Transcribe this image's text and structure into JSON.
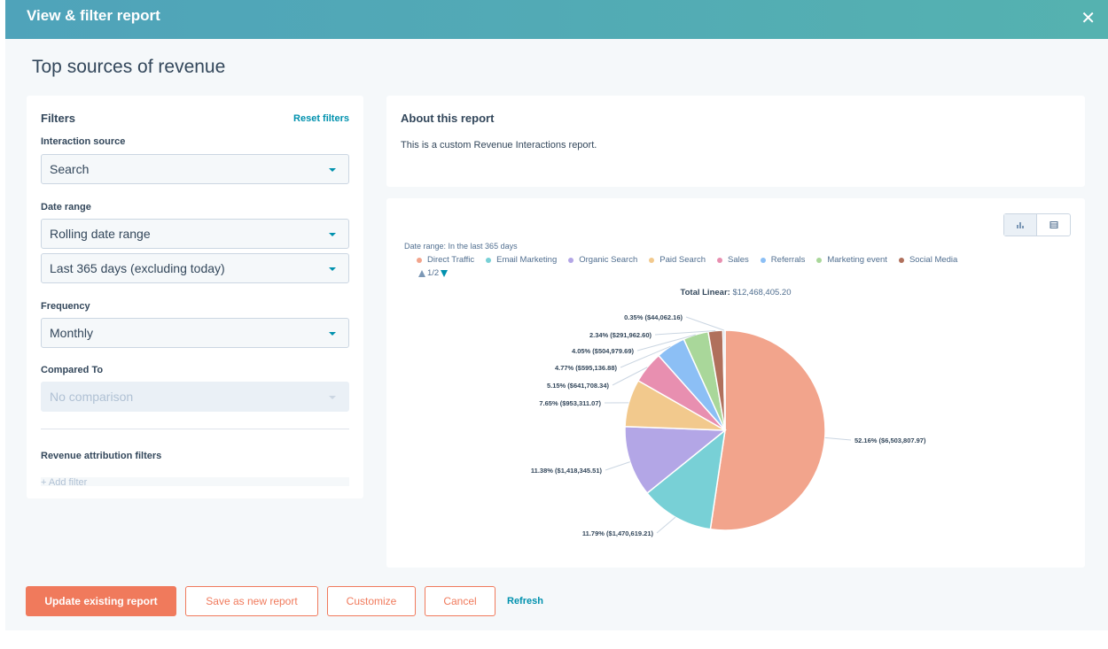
{
  "header": {
    "title": "View & filter report",
    "close": "✕"
  },
  "page_title": "Top sources of revenue",
  "filters": {
    "title": "Filters",
    "reset": "Reset filters",
    "interaction_source": {
      "label": "Interaction source",
      "value": "Search"
    },
    "date_range": {
      "label": "Date range",
      "type_value": "Rolling date range",
      "range_value": "Last 365 days (excluding today)"
    },
    "frequency": {
      "label": "Frequency",
      "value": "Monthly"
    },
    "compared_to": {
      "label": "Compared To",
      "value": "No comparison"
    },
    "attribution": {
      "label": "Revenue attribution filters",
      "add": "+ Add filter"
    }
  },
  "about": {
    "title": "About this report",
    "text": "This is a custom Revenue Interactions report."
  },
  "chart": {
    "date_range_text": "Date range: In the last 365 days",
    "pager": "1/2",
    "total_label": "Total Linear:",
    "total_value": "$12,468,405.20"
  },
  "chart_data": {
    "type": "pie",
    "legend_position": "top",
    "series": [
      {
        "name": "Direct Traffic",
        "percent": 52.16,
        "value": 6503807.97,
        "label": "52.16% ($6,503,807.97)",
        "color": "#f2a48c"
      },
      {
        "name": "Email Marketing",
        "percent": 11.79,
        "value": 1470619.21,
        "label": "11.79% ($1,470,619.21)",
        "color": "#78d0d6"
      },
      {
        "name": "Organic Search",
        "percent": 11.38,
        "value": 1418345.51,
        "label": "11.38% ($1,418,345.51)",
        "color": "#b3a6e6"
      },
      {
        "name": "Paid Search",
        "percent": 7.65,
        "value": 953311.07,
        "label": "7.65% ($953,311.07)",
        "color": "#f2c98d"
      },
      {
        "name": "Sales",
        "percent": 5.15,
        "value": 641708.34,
        "label": "5.15% ($641,708.34)",
        "color": "#e88fb0"
      },
      {
        "name": "Referrals",
        "percent": 4.77,
        "value": 595136.88,
        "label": "4.77% ($595,136.88)",
        "color": "#8cbff5"
      },
      {
        "name": "Marketing event",
        "percent": 4.05,
        "value": 504979.69,
        "label": "4.05% ($504,979.69)",
        "color": "#a9d79a"
      },
      {
        "name": "Social Media",
        "percent": 2.34,
        "value": 291962.6,
        "label": "2.34% ($291,962.60)",
        "color": "#b0705c"
      },
      {
        "name": "",
        "percent": 0.35,
        "value": 44062.16,
        "label": "0.35% ($44,062.16)",
        "color": "#cbd6e2"
      }
    ]
  },
  "actions": {
    "update": "Update existing report",
    "save_new": "Save as new report",
    "customize": "Customize",
    "cancel": "Cancel",
    "refresh": "Refresh"
  }
}
